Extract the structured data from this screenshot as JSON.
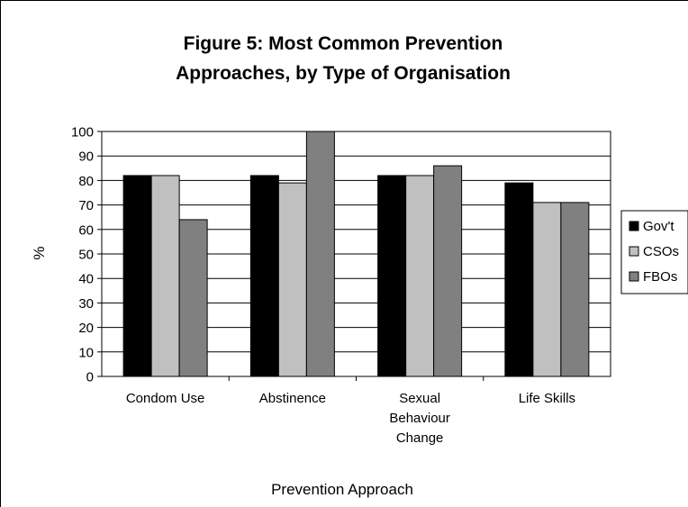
{
  "chart_data": {
    "type": "bar",
    "title_lines": [
      "Figure 5: Most Common Prevention",
      "Approaches, by Type of Organisation"
    ],
    "xlabel": "Prevention Approach",
    "ylabel": "%",
    "ylim": [
      0,
      100
    ],
    "yticks": [
      0,
      10,
      20,
      30,
      40,
      50,
      60,
      70,
      80,
      90,
      100
    ],
    "grid": true,
    "legend_position": "right",
    "categories": [
      [
        "Condom Use"
      ],
      [
        "Abstinence"
      ],
      [
        "Sexual",
        "Behaviour",
        "Change"
      ],
      [
        "Life Skills"
      ]
    ],
    "series": [
      {
        "name": "Gov't",
        "color": "#000000",
        "values": [
          82,
          82,
          82,
          79
        ]
      },
      {
        "name": "CSOs",
        "color": "#c0c0c0",
        "values": [
          82,
          79,
          82,
          71
        ]
      },
      {
        "name": "FBOs",
        "color": "#808080",
        "values": [
          64,
          100,
          86,
          71
        ]
      }
    ]
  }
}
